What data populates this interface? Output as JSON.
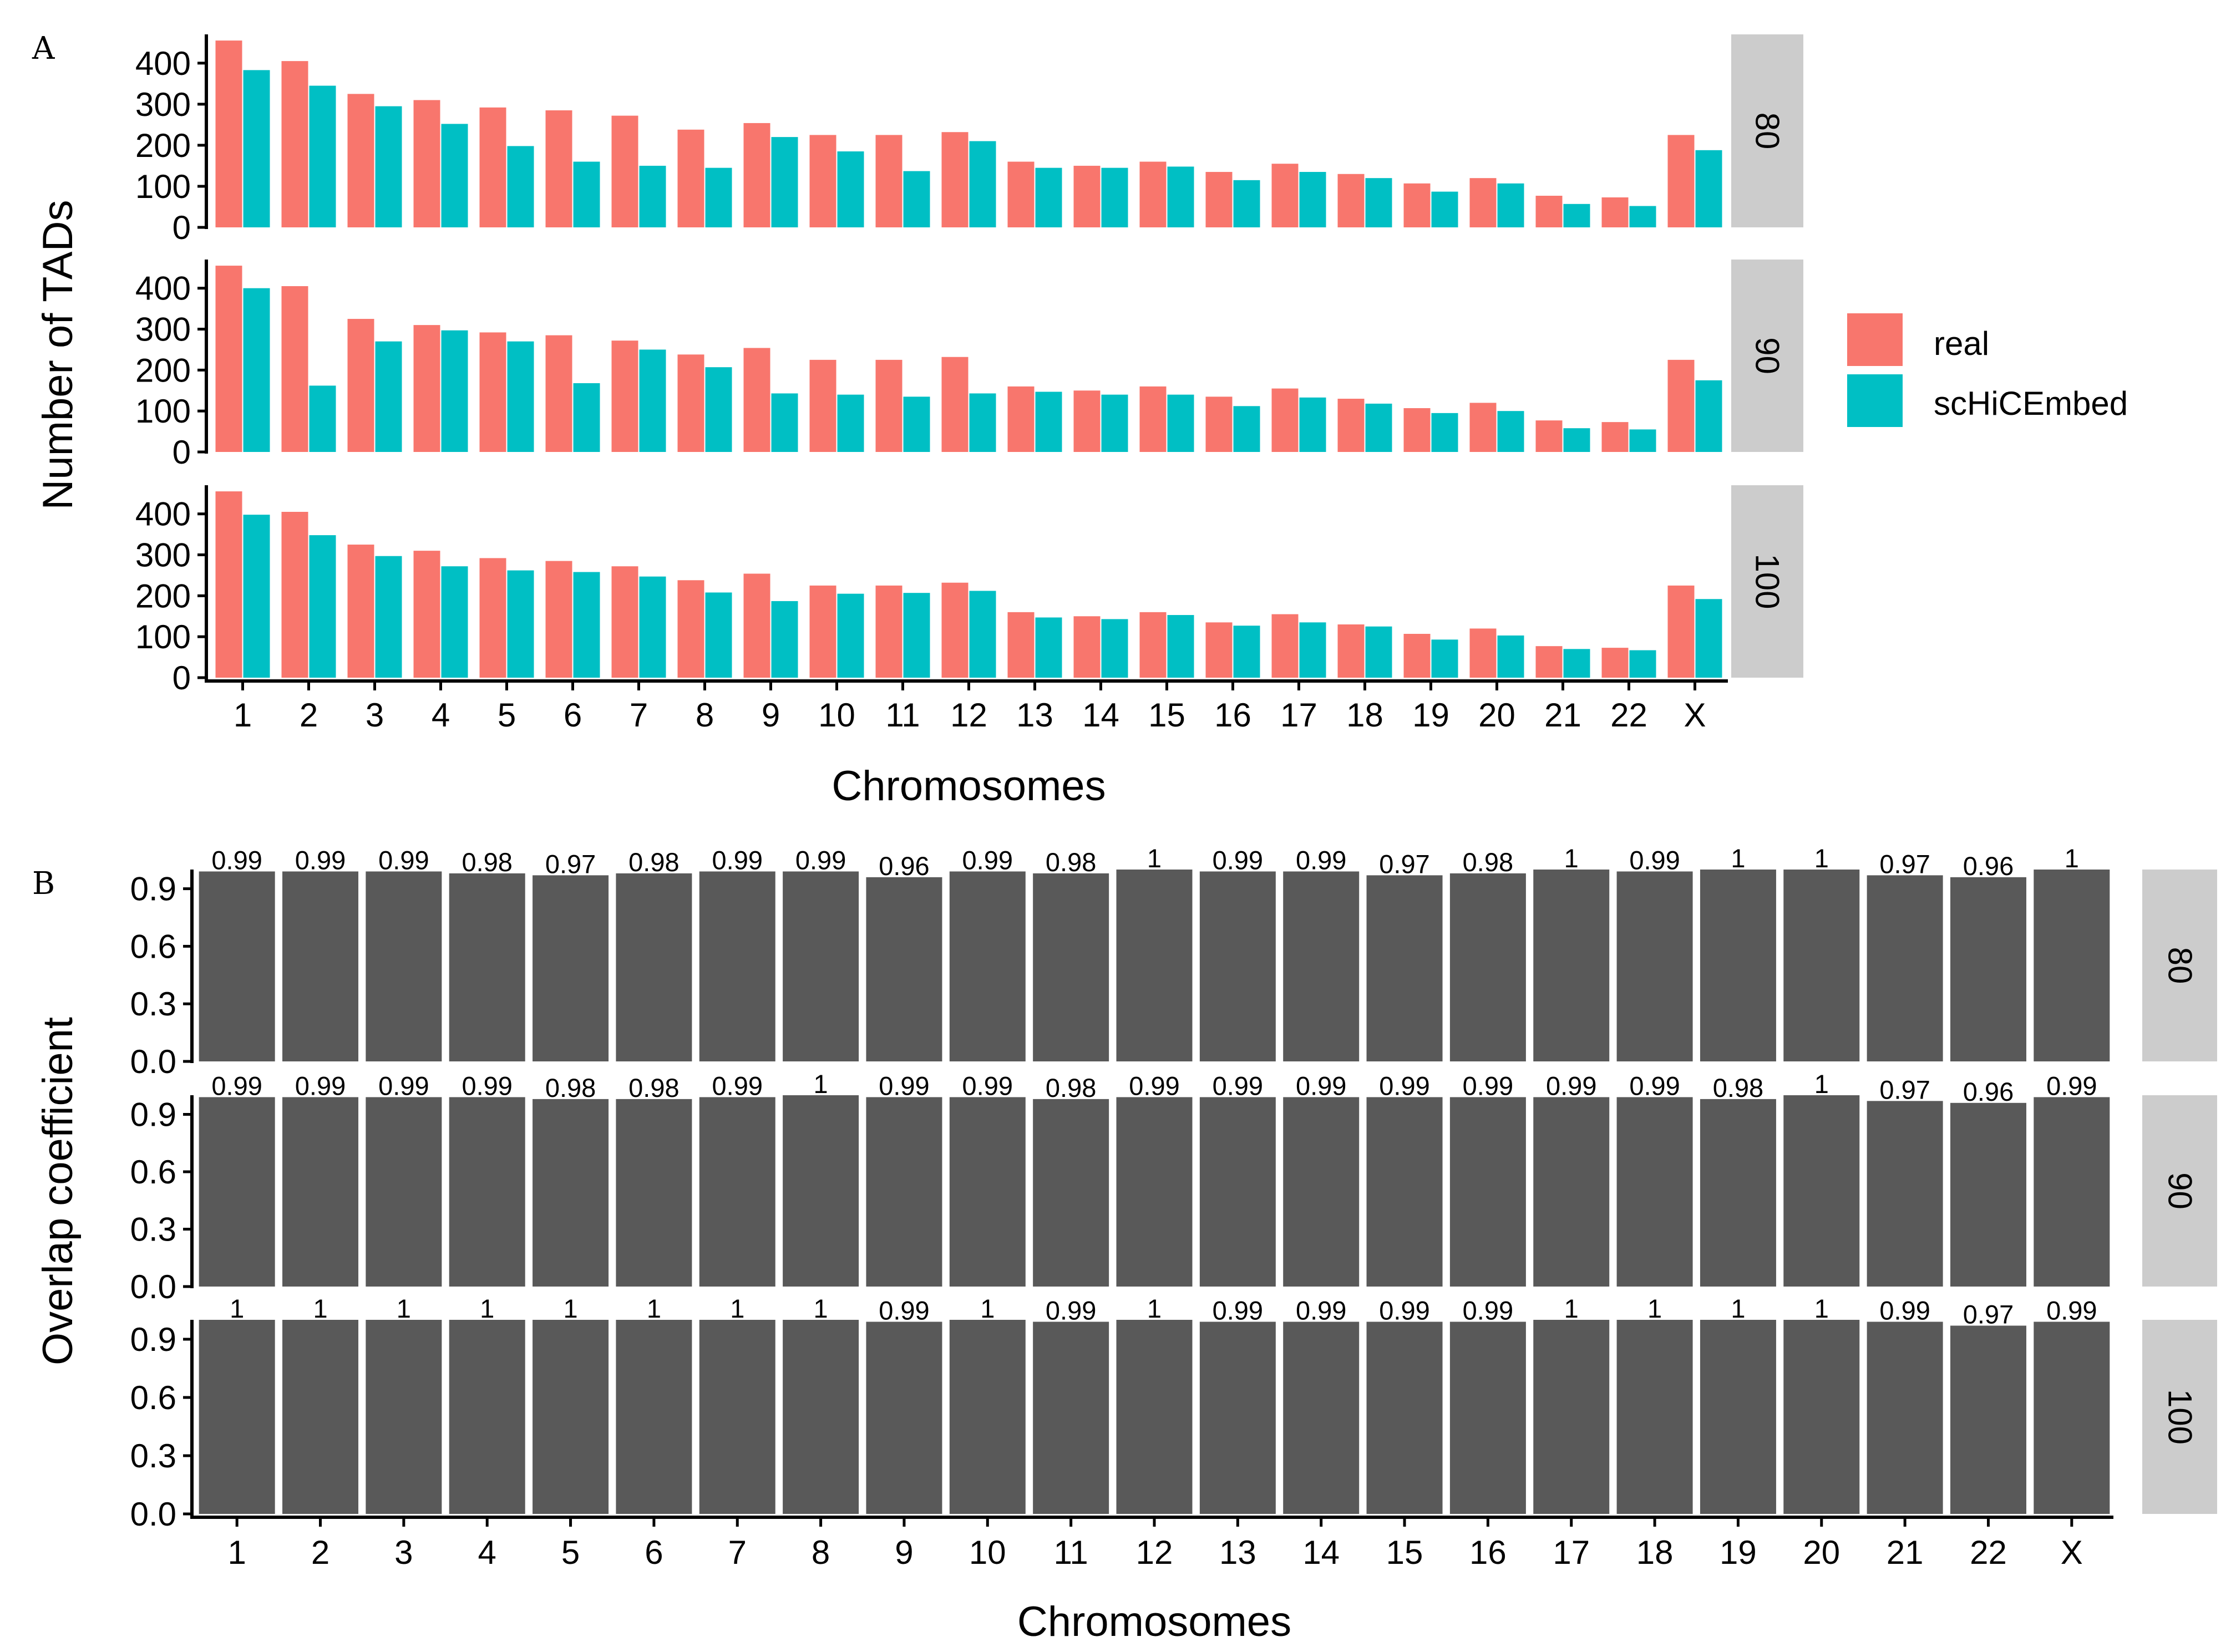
{
  "chart_data": [
    {
      "panel": "A",
      "type": "bar",
      "facet_by": "threshold",
      "categories": [
        "1",
        "2",
        "3",
        "4",
        "5",
        "6",
        "7",
        "8",
        "9",
        "10",
        "11",
        "12",
        "13",
        "14",
        "15",
        "16",
        "17",
        "18",
        "19",
        "20",
        "21",
        "22",
        "X"
      ],
      "xlabel": "Chromosomes",
      "ylabel": "Number of TADs",
      "ylim": [
        0,
        470
      ],
      "yticks": [
        0,
        100,
        200,
        300,
        400
      ],
      "colors": {
        "real": "#F8766D",
        "scHiCEmbed": "#00BFC4"
      },
      "legend": {
        "position": "right",
        "labels": [
          "real",
          "scHiCEmbed"
        ]
      },
      "facets": [
        {
          "label": "80",
          "series": [
            {
              "name": "real",
              "values": [
                455,
                405,
                325,
                310,
                292,
                285,
                272,
                238,
                254,
                225,
                225,
                232,
                160,
                150,
                160,
                135,
                155,
                130,
                107,
                120,
                77,
                73,
                225
              ]
            },
            {
              "name": "scHiCEmbed",
              "values": [
                383,
                345,
                295,
                252,
                198,
                160,
                150,
                145,
                220,
                185,
                137,
                210,
                145,
                145,
                148,
                115,
                135,
                120,
                87,
                107,
                57,
                52,
                188
              ]
            }
          ]
        },
        {
          "label": "90",
          "series": [
            {
              "name": "real",
              "values": [
                455,
                405,
                325,
                310,
                292,
                285,
                272,
                238,
                254,
                225,
                225,
                232,
                160,
                150,
                160,
                135,
                155,
                130,
                107,
                120,
                77,
                73,
                225
              ]
            },
            {
              "name": "scHiCEmbed",
              "values": [
                400,
                162,
                270,
                297,
                270,
                168,
                250,
                207,
                143,
                140,
                135,
                143,
                147,
                140,
                140,
                112,
                133,
                118,
                95,
                100,
                58,
                55,
                175
              ]
            }
          ]
        },
        {
          "label": "100",
          "series": [
            {
              "name": "real",
              "values": [
                455,
                405,
                325,
                310,
                292,
                285,
                272,
                238,
                254,
                225,
                225,
                232,
                160,
                150,
                160,
                135,
                155,
                130,
                107,
                120,
                77,
                73,
                225
              ]
            },
            {
              "name": "scHiCEmbed",
              "values": [
                398,
                348,
                297,
                272,
                262,
                258,
                247,
                208,
                187,
                205,
                207,
                212,
                147,
                143,
                153,
                127,
                135,
                125,
                93,
                103,
                70,
                67,
                192
              ]
            }
          ]
        }
      ]
    },
    {
      "panel": "B",
      "type": "bar",
      "facet_by": "threshold",
      "categories": [
        "1",
        "2",
        "3",
        "4",
        "5",
        "6",
        "7",
        "8",
        "9",
        "10",
        "11",
        "12",
        "13",
        "14",
        "15",
        "16",
        "17",
        "18",
        "19",
        "20",
        "21",
        "22",
        "X"
      ],
      "xlabel": "Chromosomes",
      "ylabel": "Overlap coefficient",
      "ylim": [
        0,
        1.0
      ],
      "yticks": [
        "0.0",
        "0.3",
        "0.6",
        "0.9"
      ],
      "colors": {
        "bar": "#595959"
      },
      "facets": [
        {
          "label": "80",
          "values": [
            0.99,
            0.99,
            0.99,
            0.98,
            0.97,
            0.98,
            0.99,
            0.99,
            0.96,
            0.99,
            0.98,
            1,
            0.99,
            0.99,
            0.97,
            0.98,
            1,
            0.99,
            1,
            1,
            0.97,
            0.96,
            1
          ],
          "value_labels": [
            "0.99",
            "0.99",
            "0.99",
            "0.98",
            "0.97",
            "0.98",
            "0.99",
            "0.99",
            "0.96",
            "0.99",
            "0.98",
            "1",
            "0.99",
            "0.99",
            "0.97",
            "0.98",
            "1",
            "0.99",
            "1",
            "1",
            "0.97",
            "0.96",
            "1"
          ]
        },
        {
          "label": "90",
          "values": [
            0.99,
            0.99,
            0.99,
            0.99,
            0.98,
            0.98,
            0.99,
            1,
            0.99,
            0.99,
            0.98,
            0.99,
            0.99,
            0.99,
            0.99,
            0.99,
            0.99,
            0.99,
            0.98,
            1,
            0.97,
            0.96,
            0.99
          ],
          "value_labels": [
            "0.99",
            "0.99",
            "0.99",
            "0.99",
            "0.98",
            "0.98",
            "0.99",
            "1",
            "0.99",
            "0.99",
            "0.98",
            "0.99",
            "0.99",
            "0.99",
            "0.99",
            "0.99",
            "0.99",
            "0.99",
            "0.98",
            "1",
            "0.97",
            "0.96",
            "0.99"
          ]
        },
        {
          "label": "100",
          "values": [
            1,
            1,
            1,
            1,
            1,
            1,
            1,
            1,
            0.99,
            1,
            0.99,
            1,
            0.99,
            0.99,
            0.99,
            0.99,
            1,
            1,
            1,
            1,
            0.99,
            0.97,
            0.99
          ],
          "value_labels": [
            "1",
            "1",
            "1",
            "1",
            "1",
            "1",
            "1",
            "1",
            "0.99",
            "1",
            "0.99",
            "1",
            "0.99",
            "0.99",
            "0.99",
            "0.99",
            "1",
            "1",
            "1",
            "1",
            "0.99",
            "0.97",
            "0.99"
          ]
        }
      ]
    }
  ]
}
